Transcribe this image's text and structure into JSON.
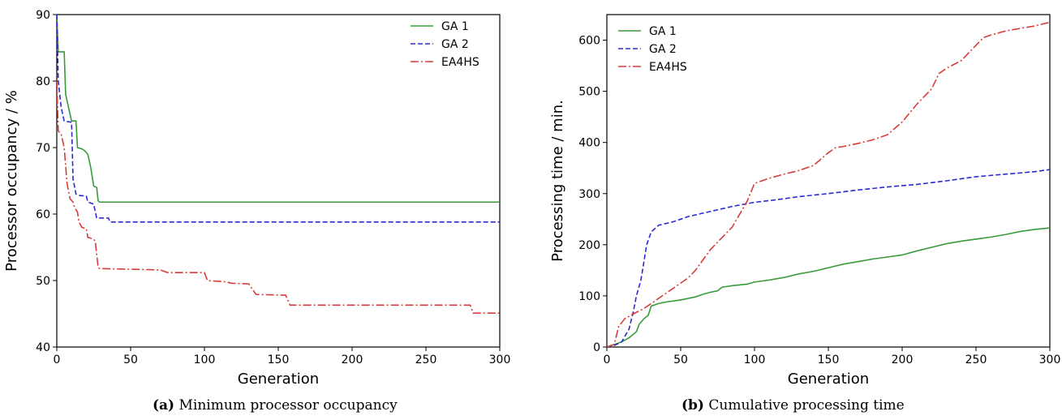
{
  "colors": {
    "GA 1": "#3a9a3a",
    "GA 2": "#2b2bd6",
    "EA4HS": "#d93a3a"
  },
  "captions": [
    {
      "tag": "(a)",
      "text": "Minimum processor occupancy"
    },
    {
      "tag": "(b)",
      "text": "Cumulative processing time"
    }
  ],
  "chart_data": [
    {
      "type": "line",
      "xlabel": "Generation",
      "ylabel": "Processor occupancy / %",
      "xlim": [
        0,
        300
      ],
      "ylim": [
        40,
        90
      ],
      "xticks": [
        0,
        50,
        100,
        150,
        200,
        250,
        300
      ],
      "yticks": [
        40,
        50,
        60,
        70,
        80,
        90
      ],
      "grid": false,
      "legend_position": "top-right",
      "series": [
        {
          "name": "GA 1",
          "style": "solid",
          "points": [
            [
              0,
              90
            ],
            [
              1,
              84.4
            ],
            [
              5,
              84.4
            ],
            [
              6,
              78
            ],
            [
              8,
              76
            ],
            [
              10,
              74
            ],
            [
              13,
              74
            ],
            [
              14,
              70
            ],
            [
              17,
              69.8
            ],
            [
              19,
              69.5
            ],
            [
              21,
              69
            ],
            [
              23,
              67
            ],
            [
              25,
              64.2
            ],
            [
              27,
              64
            ],
            [
              28,
              62
            ],
            [
              29,
              61.8
            ],
            [
              300,
              61.8
            ]
          ]
        },
        {
          "name": "GA 2",
          "style": "dashed",
          "points": [
            [
              0,
              90
            ],
            [
              1,
              80
            ],
            [
              3,
              76
            ],
            [
              5,
              74
            ],
            [
              10,
              73.8
            ],
            [
              11,
              65.3
            ],
            [
              13,
              63
            ],
            [
              15,
              62.8
            ],
            [
              20,
              62.7
            ],
            [
              21,
              61.8
            ],
            [
              25,
              61.5
            ],
            [
              27,
              59.4
            ],
            [
              35,
              59.4
            ],
            [
              36,
              58.8
            ],
            [
              300,
              58.8
            ]
          ]
        },
        {
          "name": "EA4HS",
          "style": "dashdot",
          "points": [
            [
              0,
              80
            ],
            [
              1,
              72.5
            ],
            [
              3,
              72
            ],
            [
              5,
              70
            ],
            [
              7,
              64.5
            ],
            [
              9,
              62.3
            ],
            [
              11,
              61.8
            ],
            [
              12,
              61
            ],
            [
              14,
              60.3
            ],
            [
              15,
              58.8
            ],
            [
              17,
              58
            ],
            [
              20,
              57.8
            ],
            [
              21,
              56.5
            ],
            [
              24,
              56.3
            ],
            [
              26,
              56
            ],
            [
              27,
              54
            ],
            [
              28,
              52
            ],
            [
              29,
              51.8
            ],
            [
              70,
              51.6
            ],
            [
              75,
              51.2
            ],
            [
              100,
              51.2
            ],
            [
              102,
              50
            ],
            [
              115,
              49.8
            ],
            [
              118,
              49.6
            ],
            [
              130,
              49.5
            ],
            [
              135,
              47.9
            ],
            [
              155,
              47.8
            ],
            [
              158,
              46.3
            ],
            [
              280,
              46.3
            ],
            [
              282,
              45.1
            ],
            [
              300,
              45.1
            ]
          ]
        }
      ]
    },
    {
      "type": "line",
      "xlabel": "Generation",
      "ylabel": "Processing time / min.",
      "xlim": [
        0,
        300
      ],
      "ylim": [
        0,
        650
      ],
      "xticks": [
        0,
        50,
        100,
        150,
        200,
        250,
        300
      ],
      "yticks": [
        0,
        100,
        200,
        300,
        400,
        500,
        600
      ],
      "grid": false,
      "legend_position": "top-left",
      "series": [
        {
          "name": "GA 1",
          "style": "solid",
          "points": [
            [
              0,
              0
            ],
            [
              5,
              5
            ],
            [
              10,
              10
            ],
            [
              15,
              18
            ],
            [
              20,
              30
            ],
            [
              22,
              45
            ],
            [
              25,
              55
            ],
            [
              28,
              62
            ],
            [
              30,
              80
            ],
            [
              35,
              85
            ],
            [
              40,
              88
            ],
            [
              50,
              92
            ],
            [
              60,
              98
            ],
            [
              65,
              103
            ],
            [
              70,
              107
            ],
            [
              75,
              110
            ],
            [
              78,
              117
            ],
            [
              85,
              120
            ],
            [
              95,
              123
            ],
            [
              100,
              127
            ],
            [
              110,
              131
            ],
            [
              120,
              136
            ],
            [
              130,
              143
            ],
            [
              140,
              148
            ],
            [
              150,
              155
            ],
            [
              160,
              162
            ],
            [
              170,
              167
            ],
            [
              180,
              172
            ],
            [
              190,
              176
            ],
            [
              200,
              180
            ],
            [
              210,
              188
            ],
            [
              220,
              195
            ],
            [
              230,
              202
            ],
            [
              240,
              207
            ],
            [
              250,
              211
            ],
            [
              260,
              215
            ],
            [
              270,
              220
            ],
            [
              280,
              226
            ],
            [
              290,
              230
            ],
            [
              300,
              233
            ]
          ]
        },
        {
          "name": "GA 2",
          "style": "dashed",
          "points": [
            [
              0,
              0
            ],
            [
              5,
              3
            ],
            [
              10,
              10
            ],
            [
              15,
              35
            ],
            [
              18,
              70
            ],
            [
              20,
              100
            ],
            [
              23,
              130
            ],
            [
              25,
              165
            ],
            [
              27,
              200
            ],
            [
              30,
              225
            ],
            [
              35,
              238
            ],
            [
              45,
              245
            ],
            [
              55,
              255
            ],
            [
              70,
              265
            ],
            [
              85,
              275
            ],
            [
              100,
              283
            ],
            [
              115,
              288
            ],
            [
              130,
              294
            ],
            [
              150,
              300
            ],
            [
              170,
              307
            ],
            [
              190,
              313
            ],
            [
              210,
              318
            ],
            [
              230,
              325
            ],
            [
              250,
              333
            ],
            [
              270,
              338
            ],
            [
              290,
              343
            ],
            [
              300,
              347
            ]
          ]
        },
        {
          "name": "EA4HS",
          "style": "dashdot",
          "points": [
            [
              0,
              0
            ],
            [
              5,
              5
            ],
            [
              8,
              40
            ],
            [
              12,
              55
            ],
            [
              18,
              65
            ],
            [
              25,
              75
            ],
            [
              30,
              85
            ],
            [
              35,
              95
            ],
            [
              40,
              105
            ],
            [
              45,
              115
            ],
            [
              50,
              125
            ],
            [
              55,
              135
            ],
            [
              60,
              150
            ],
            [
              65,
              170
            ],
            [
              70,
              190
            ],
            [
              75,
              205
            ],
            [
              80,
              220
            ],
            [
              85,
              235
            ],
            [
              90,
              260
            ],
            [
              95,
              285
            ],
            [
              100,
              320
            ],
            [
              110,
              330
            ],
            [
              120,
              338
            ],
            [
              130,
              345
            ],
            [
              140,
              355
            ],
            [
              150,
              380
            ],
            [
              155,
              390
            ],
            [
              160,
              392
            ],
            [
              170,
              398
            ],
            [
              180,
              405
            ],
            [
              190,
              415
            ],
            [
              200,
              440
            ],
            [
              210,
              475
            ],
            [
              220,
              505
            ],
            [
              225,
              535
            ],
            [
              230,
              545
            ],
            [
              240,
              560
            ],
            [
              250,
              590
            ],
            [
              255,
              605
            ],
            [
              260,
              610
            ],
            [
              270,
              618
            ],
            [
              280,
              623
            ],
            [
              290,
              628
            ],
            [
              300,
              635
            ]
          ]
        }
      ]
    }
  ]
}
